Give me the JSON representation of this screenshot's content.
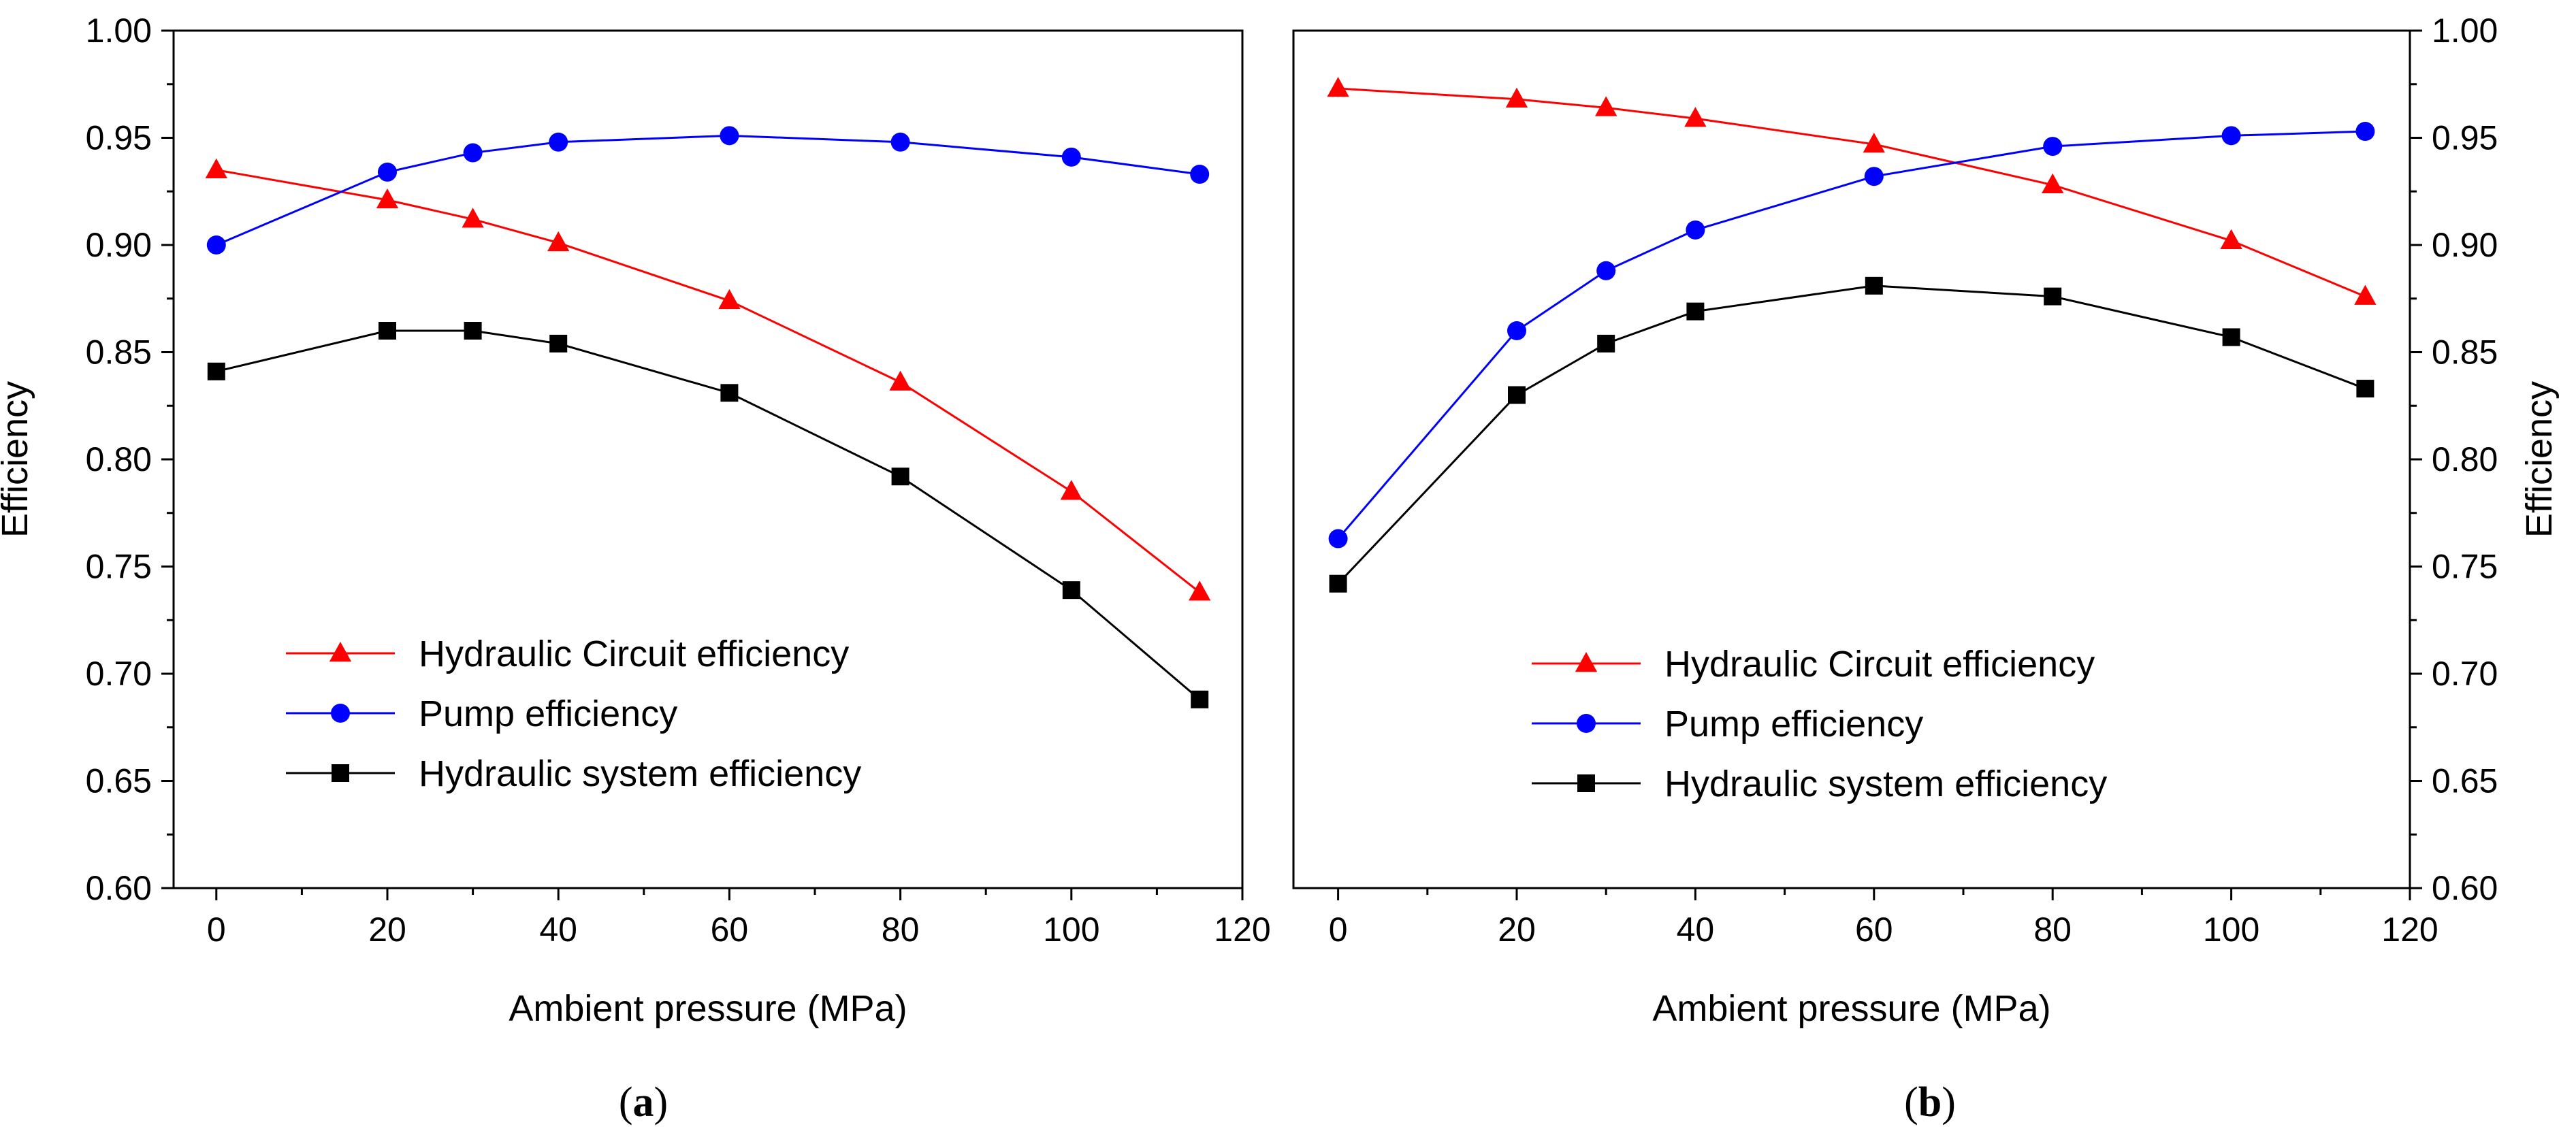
{
  "chart_data": [
    {
      "type": "line",
      "panel_label": "a",
      "xlabel": "Ambient pressure (MPa)",
      "ylabel": "Efficiency",
      "ylabel_side": "left",
      "xlim": [
        -5,
        120
      ],
      "ylim": [
        0.6,
        1.0
      ],
      "xticks": [
        0,
        20,
        40,
        60,
        80,
        100,
        120
      ],
      "yticks": [
        0.6,
        0.65,
        0.7,
        0.75,
        0.8,
        0.85,
        0.9,
        0.95,
        1.0
      ],
      "legend_position": "bottom-left",
      "x": [
        0,
        20,
        30,
        40,
        60,
        80,
        100,
        115
      ],
      "series": [
        {
          "name": "Hydraulic Circuit efficiency",
          "color": "#ff0000",
          "marker": "triangle",
          "values": [
            0.935,
            0.921,
            0.912,
            0.901,
            0.874,
            0.836,
            0.785,
            0.738
          ]
        },
        {
          "name": "Pump efficiency",
          "color": "#0000ff",
          "marker": "circle",
          "values": [
            0.9,
            0.934,
            0.943,
            0.948,
            0.951,
            0.948,
            0.941,
            0.933
          ]
        },
        {
          "name": "Hydraulic system efficiency",
          "color": "#000000",
          "marker": "square",
          "values": [
            0.841,
            0.86,
            0.86,
            0.854,
            0.831,
            0.792,
            0.739,
            0.688
          ]
        }
      ]
    },
    {
      "type": "line",
      "panel_label": "b",
      "xlabel": "Ambient pressure (MPa)",
      "ylabel": "Efficiency",
      "ylabel_side": "right",
      "xlim": [
        -5,
        120
      ],
      "ylim": [
        0.6,
        1.0
      ],
      "xticks": [
        0,
        20,
        40,
        60,
        80,
        100,
        120
      ],
      "yticks": [
        0.6,
        0.65,
        0.7,
        0.75,
        0.8,
        0.85,
        0.9,
        0.95,
        1.0
      ],
      "legend_position": "bottom-center",
      "x": [
        0,
        20,
        30,
        40,
        60,
        80,
        100,
        115
      ],
      "series": [
        {
          "name": "Hydraulic Circuit efficiency",
          "color": "#ff0000",
          "marker": "triangle",
          "values": [
            0.973,
            0.968,
            0.964,
            0.959,
            0.947,
            0.928,
            0.902,
            0.876
          ]
        },
        {
          "name": "Pump efficiency",
          "color": "#0000ff",
          "marker": "circle",
          "values": [
            0.763,
            0.86,
            0.888,
            0.907,
            0.932,
            0.946,
            0.951,
            0.953
          ]
        },
        {
          "name": "Hydraulic system efficiency",
          "color": "#000000",
          "marker": "square",
          "values": [
            0.742,
            0.83,
            0.854,
            0.869,
            0.881,
            0.876,
            0.857,
            0.833
          ]
        }
      ]
    }
  ]
}
